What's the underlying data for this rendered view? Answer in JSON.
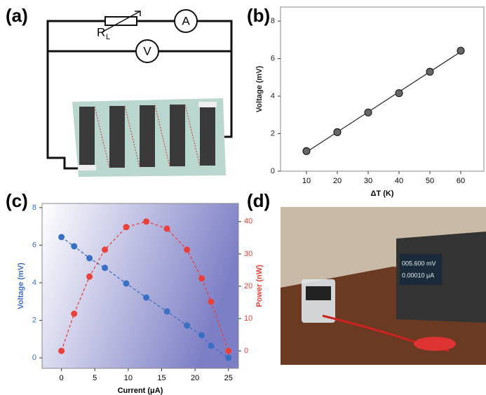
{
  "panel_a": {
    "label": "(a)",
    "resistor": "R",
    "resistor_sub": "L",
    "ammeter": "A",
    "voltmeter": "V"
  },
  "chart_data": [
    {
      "type": "scatter",
      "panel_label": "(b)",
      "xlabel": "ΔT (K)",
      "ylabel": "Voltage (mV)",
      "x": [
        10,
        20,
        30,
        40,
        50,
        60
      ],
      "series": [
        {
          "color": "#222222",
          "values": [
            1.07,
            2.08,
            3.13,
            4.16,
            5.3,
            6.42
          ]
        }
      ],
      "trendline": true,
      "xlim": [
        1.6,
        67.5
      ],
      "ylim": [
        0,
        8.75
      ],
      "xticks": [
        10,
        20,
        30,
        40,
        50,
        60
      ],
      "yticks": [
        0,
        2,
        4,
        6,
        8
      ]
    },
    {
      "type": "line",
      "panel_label": "(c)",
      "xlabel": "Current (μA)",
      "ylabel": "Voltage (mV)",
      "y2label": "Power (nW)",
      "x": [
        0,
        1.9,
        4.2,
        6.5,
        9.7,
        12.7,
        15.8,
        18.8,
        21.0,
        22.4,
        25.0
      ],
      "series": [
        {
          "color": "#3a6fc4",
          "values": [
            6.43,
            5.94,
            5.31,
            4.79,
            3.96,
            3.21,
            2.47,
            1.72,
            1.2,
            0.64,
            0
          ]
        },
        {
          "color": "#e8403a",
          "axis": "y2",
          "values": [
            0,
            11.5,
            23,
            31.3,
            38.3,
            40,
            37.8,
            31.3,
            22.4,
            15.2,
            0
          ]
        }
      ],
      "linestyle": "dashed",
      "xlim": [
        -2.9,
        26.5
      ],
      "ylim": [
        -0.56,
        8.22
      ],
      "y2lim": [
        -5.4,
        45.6
      ],
      "xticks": [
        0,
        5,
        10,
        15,
        20,
        25
      ],
      "yticks": [
        0,
        2,
        4,
        6,
        8
      ],
      "y2ticks": [
        0,
        10,
        20,
        30,
        40
      ]
    }
  ],
  "panel_d": {
    "label": "(d)",
    "display_line1": "005.600 mV",
    "display_line2": "0.00010 μA"
  }
}
